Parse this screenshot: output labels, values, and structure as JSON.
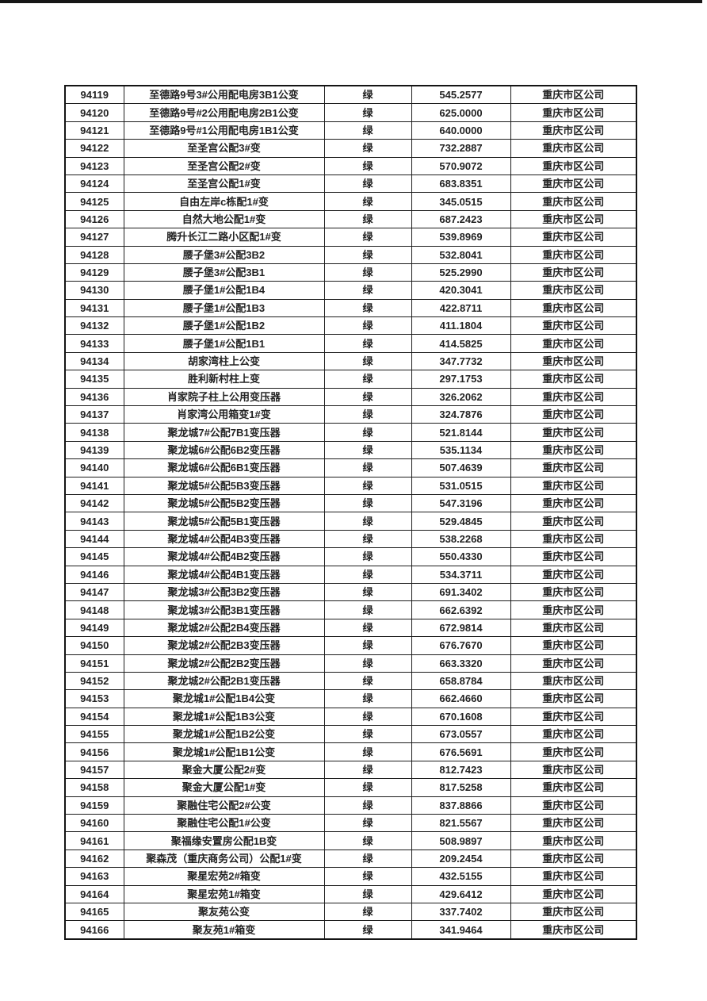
{
  "page": {
    "background": "#ffffff",
    "top_bar_color": "#161616"
  },
  "table": {
    "border_color": "#1d1d1d",
    "text_color": "#232323",
    "status_label": "绿",
    "company_label": "重庆市区公司",
    "rows": [
      {
        "id": "94119",
        "name": "至德路9号3#公用配电房3B1公变",
        "status": "绿",
        "value": "545.2577",
        "company": "重庆市区公司"
      },
      {
        "id": "94120",
        "name": "至德路9号#2公用配电房2B1公变",
        "status": "绿",
        "value": "625.0000",
        "company": "重庆市区公司"
      },
      {
        "id": "94121",
        "name": "至德路9号#1公用配电房1B1公变",
        "status": "绿",
        "value": "640.0000",
        "company": "重庆市区公司"
      },
      {
        "id": "94122",
        "name": "至圣宫公配3#变",
        "status": "绿",
        "value": "732.2887",
        "company": "重庆市区公司"
      },
      {
        "id": "94123",
        "name": "至圣宫公配2#变",
        "status": "绿",
        "value": "570.9072",
        "company": "重庆市区公司"
      },
      {
        "id": "94124",
        "name": "至圣宫公配1#变",
        "status": "绿",
        "value": "683.8351",
        "company": "重庆市区公司"
      },
      {
        "id": "94125",
        "name": "自由左岸c栋配1#变",
        "status": "绿",
        "value": "345.0515",
        "company": "重庆市区公司"
      },
      {
        "id": "94126",
        "name": "自然大地公配1#变",
        "status": "绿",
        "value": "687.2423",
        "company": "重庆市区公司"
      },
      {
        "id": "94127",
        "name": "腾升长江二路小区配1#变",
        "status": "绿",
        "value": "539.8969",
        "company": "重庆市区公司"
      },
      {
        "id": "94128",
        "name": "腰子堡3#公配3B2",
        "status": "绿",
        "value": "532.8041",
        "company": "重庆市区公司"
      },
      {
        "id": "94129",
        "name": "腰子堡3#公配3B1",
        "status": "绿",
        "value": "525.2990",
        "company": "重庆市区公司"
      },
      {
        "id": "94130",
        "name": "腰子堡1#公配1B4",
        "status": "绿",
        "value": "420.3041",
        "company": "重庆市区公司"
      },
      {
        "id": "94131",
        "name": "腰子堡1#公配1B3",
        "status": "绿",
        "value": "422.8711",
        "company": "重庆市区公司"
      },
      {
        "id": "94132",
        "name": "腰子堡1#公配1B2",
        "status": "绿",
        "value": "411.1804",
        "company": "重庆市区公司"
      },
      {
        "id": "94133",
        "name": "腰子堡1#公配1B1",
        "status": "绿",
        "value": "414.5825",
        "company": "重庆市区公司"
      },
      {
        "id": "94134",
        "name": "胡家湾柱上公变",
        "status": "绿",
        "value": "347.7732",
        "company": "重庆市区公司"
      },
      {
        "id": "94135",
        "name": "胜利新村柱上变",
        "status": "绿",
        "value": "297.1753",
        "company": "重庆市区公司"
      },
      {
        "id": "94136",
        "name": "肖家院子柱上公用变压器",
        "status": "绿",
        "value": "326.2062",
        "company": "重庆市区公司"
      },
      {
        "id": "94137",
        "name": "肖家湾公用箱变1#变",
        "status": "绿",
        "value": "324.7876",
        "company": "重庆市区公司"
      },
      {
        "id": "94138",
        "name": "聚龙城7#公配7B1变压器",
        "status": "绿",
        "value": "521.8144",
        "company": "重庆市区公司"
      },
      {
        "id": "94139",
        "name": "聚龙城6#公配6B2变压器",
        "status": "绿",
        "value": "535.1134",
        "company": "重庆市区公司"
      },
      {
        "id": "94140",
        "name": "聚龙城6#公配6B1变压器",
        "status": "绿",
        "value": "507.4639",
        "company": "重庆市区公司"
      },
      {
        "id": "94141",
        "name": "聚龙城5#公配5B3变压器",
        "status": "绿",
        "value": "531.0515",
        "company": "重庆市区公司"
      },
      {
        "id": "94142",
        "name": "聚龙城5#公配5B2变压器",
        "status": "绿",
        "value": "547.3196",
        "company": "重庆市区公司"
      },
      {
        "id": "94143",
        "name": "聚龙城5#公配5B1变压器",
        "status": "绿",
        "value": "529.4845",
        "company": "重庆市区公司"
      },
      {
        "id": "94144",
        "name": "聚龙城4#公配4B3变压器",
        "status": "绿",
        "value": "538.2268",
        "company": "重庆市区公司"
      },
      {
        "id": "94145",
        "name": "聚龙城4#公配4B2变压器",
        "status": "绿",
        "value": "550.4330",
        "company": "重庆市区公司"
      },
      {
        "id": "94146",
        "name": "聚龙城4#公配4B1变压器",
        "status": "绿",
        "value": "534.3711",
        "company": "重庆市区公司"
      },
      {
        "id": "94147",
        "name": "聚龙城3#公配3B2变压器",
        "status": "绿",
        "value": "691.3402",
        "company": "重庆市区公司"
      },
      {
        "id": "94148",
        "name": "聚龙城3#公配3B1变压器",
        "status": "绿",
        "value": "662.6392",
        "company": "重庆市区公司"
      },
      {
        "id": "94149",
        "name": "聚龙城2#公配2B4变压器",
        "status": "绿",
        "value": "672.9814",
        "company": "重庆市区公司"
      },
      {
        "id": "94150",
        "name": "聚龙城2#公配2B3变压器",
        "status": "绿",
        "value": "676.7670",
        "company": "重庆市区公司"
      },
      {
        "id": "94151",
        "name": "聚龙城2#公配2B2变压器",
        "status": "绿",
        "value": "663.3320",
        "company": "重庆市区公司"
      },
      {
        "id": "94152",
        "name": "聚龙城2#公配2B1变压器",
        "status": "绿",
        "value": "658.8784",
        "company": "重庆市区公司"
      },
      {
        "id": "94153",
        "name": "聚龙城1#公配1B4公变",
        "status": "绿",
        "value": "662.4660",
        "company": "重庆市区公司"
      },
      {
        "id": "94154",
        "name": "聚龙城1#公配1B3公变",
        "status": "绿",
        "value": "670.1608",
        "company": "重庆市区公司"
      },
      {
        "id": "94155",
        "name": "聚龙城1#公配1B2公变",
        "status": "绿",
        "value": "673.0557",
        "company": "重庆市区公司"
      },
      {
        "id": "94156",
        "name": "聚龙城1#公配1B1公变",
        "status": "绿",
        "value": "676.5691",
        "company": "重庆市区公司"
      },
      {
        "id": "94157",
        "name": "聚金大厦公配2#变",
        "status": "绿",
        "value": "812.7423",
        "company": "重庆市区公司"
      },
      {
        "id": "94158",
        "name": "聚金大厦公配1#变",
        "status": "绿",
        "value": "817.5258",
        "company": "重庆市区公司"
      },
      {
        "id": "94159",
        "name": "聚融住宅公配2#公变",
        "status": "绿",
        "value": "837.8866",
        "company": "重庆市区公司"
      },
      {
        "id": "94160",
        "name": "聚融住宅公配1#公变",
        "status": "绿",
        "value": "821.5567",
        "company": "重庆市区公司"
      },
      {
        "id": "94161",
        "name": "聚福缘安置房公配1B变",
        "status": "绿",
        "value": "508.9897",
        "company": "重庆市区公司"
      },
      {
        "id": "94162",
        "name": "聚森茂（重庆商务公司）公配1#变",
        "status": "绿",
        "value": "209.2454",
        "company": "重庆市区公司"
      },
      {
        "id": "94163",
        "name": "聚星宏苑2#箱变",
        "status": "绿",
        "value": "432.5155",
        "company": "重庆市区公司"
      },
      {
        "id": "94164",
        "name": "聚星宏苑1#箱变",
        "status": "绿",
        "value": "429.6412",
        "company": "重庆市区公司"
      },
      {
        "id": "94165",
        "name": "聚友苑公变",
        "status": "绿",
        "value": "337.7402",
        "company": "重庆市区公司"
      },
      {
        "id": "94166",
        "name": "聚友苑1#箱变",
        "status": "绿",
        "value": "341.9464",
        "company": "重庆市区公司"
      }
    ]
  }
}
